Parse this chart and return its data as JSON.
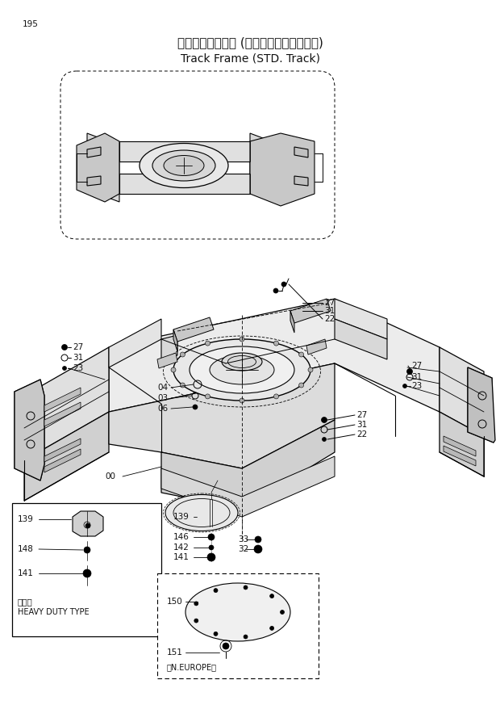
{
  "title_jp": "トラックフレーム (スタンダードトラック)",
  "title_en": "Track Frame (STD. Track)",
  "page_num": "195",
  "bg_color": "#ffffff",
  "tc": "#111111",
  "lc": "#000000"
}
